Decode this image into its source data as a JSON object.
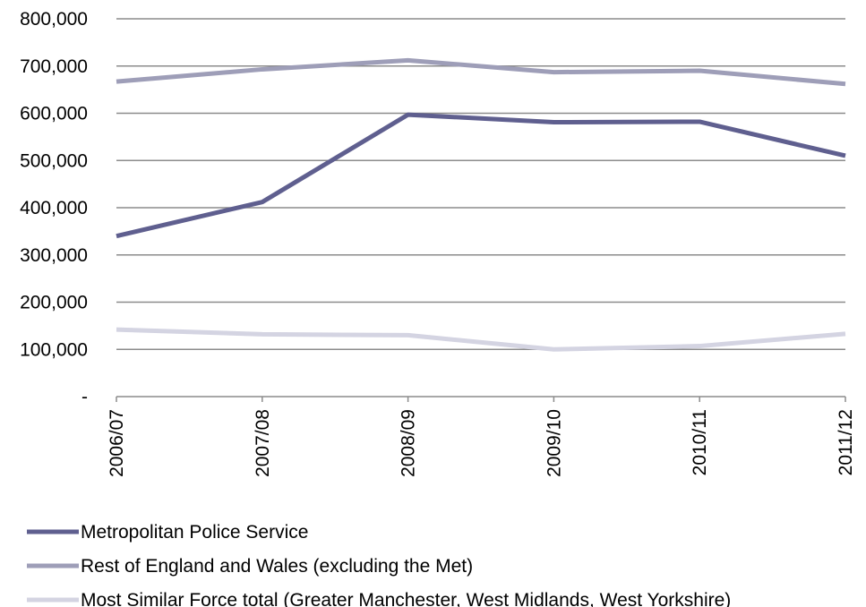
{
  "chart_data": {
    "type": "line",
    "title": "",
    "xlabel": "",
    "ylabel": "",
    "categories": [
      "2006/07",
      "2007/08",
      "2008/09",
      "2009/10",
      "2010/11",
      "2011/12"
    ],
    "ylim": [
      0,
      800000
    ],
    "y_ticks": [
      0,
      100000,
      200000,
      300000,
      400000,
      500000,
      600000,
      700000,
      800000
    ],
    "y_tick_labels": [
      "-",
      "100,000",
      "200,000",
      "300,000",
      "400,000",
      "500,000",
      "600,000",
      "700,000",
      "800,000"
    ],
    "grid": true,
    "legend_position": "bottom",
    "series": [
      {
        "name": "Metropolitan Police Service",
        "color": "#5f5f8f",
        "values": [
          340000,
          412000,
          597000,
          581000,
          582000,
          510000
        ]
      },
      {
        "name": "Rest of England and Wales (excluding the Met)",
        "color": "#9e9eb8",
        "values": [
          667000,
          693000,
          712000,
          687000,
          690000,
          662000
        ]
      },
      {
        "name": "Most Similar Force total (Greater Manchester, West Midlands, West Yorkshire)",
        "color": "#d4d4e2",
        "values": [
          142000,
          132000,
          130000,
          100000,
          107000,
          133000
        ]
      }
    ]
  }
}
